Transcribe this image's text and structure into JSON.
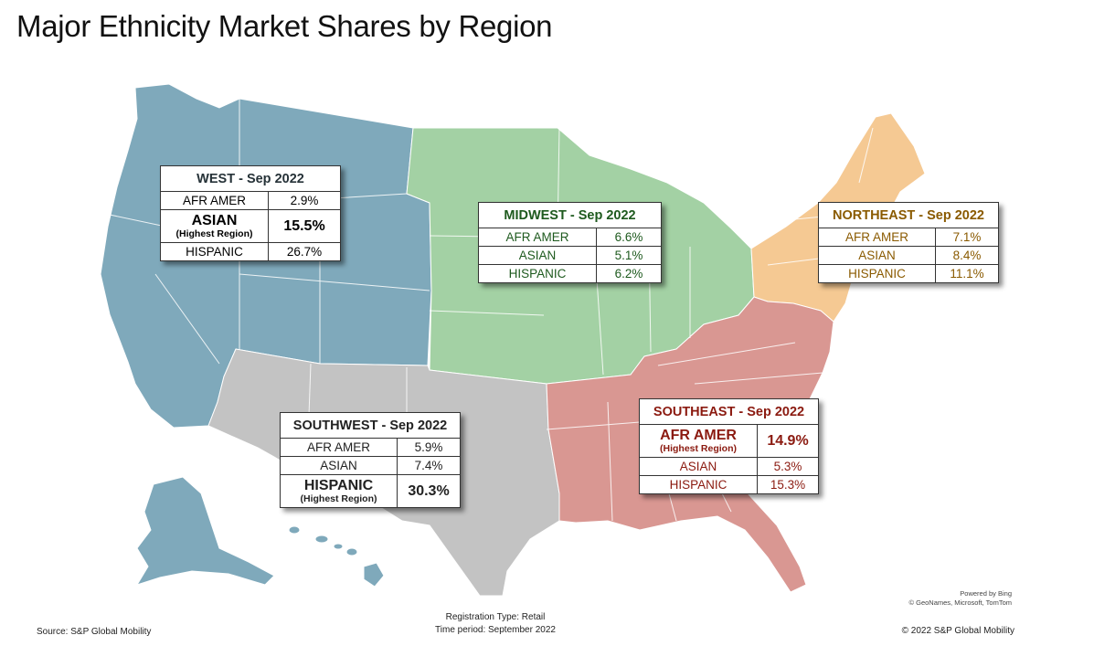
{
  "title": "Major Ethnicity Market Shares by Region",
  "colors": {
    "west": "#7fa9bb",
    "southwest": "#c3c3c3",
    "midwest": "#a3d1a4",
    "northeast": "#f5c993",
    "southeast": "#d99792"
  },
  "regions": {
    "west": {
      "header": "WEST - Sep 2022",
      "color": "#263238",
      "rows": [
        {
          "label": "AFR AMER",
          "value": "2.9%"
        },
        {
          "label": "ASIAN",
          "sub": "(Highest Region)",
          "value": "15.5%",
          "highlight": true
        },
        {
          "label": "HISPANIC",
          "value": "26.7%"
        }
      ]
    },
    "midwest": {
      "header": "MIDWEST - Sep 2022",
      "color": "#1e5a1e",
      "rows": [
        {
          "label": "AFR AMER",
          "value": "6.6%"
        },
        {
          "label": "ASIAN",
          "value": "5.1%"
        },
        {
          "label": "HISPANIC",
          "value": "6.2%"
        }
      ]
    },
    "northeast": {
      "header": "NORTHEAST - Sep 2022",
      "color": "#8a5a00",
      "rows": [
        {
          "label": "AFR AMER",
          "value": "7.1%"
        },
        {
          "label": "ASIAN",
          "value": "8.4%"
        },
        {
          "label": "HISPANIC",
          "value": "11.1%"
        }
      ]
    },
    "southwest": {
      "header": "SOUTHWEST - Sep 2022",
      "color": "#222222",
      "rows": [
        {
          "label": "AFR AMER",
          "value": "5.9%"
        },
        {
          "label": "ASIAN",
          "value": "7.4%"
        },
        {
          "label": "HISPANIC",
          "sub": "(Highest Region)",
          "value": "30.3%",
          "highlight": true
        }
      ]
    },
    "southeast": {
      "header": "SOUTHEAST - Sep 2022",
      "color": "#8b1a10",
      "rows": [
        {
          "label": "AFR AMER",
          "sub": "(Highest Region)",
          "value": "14.9%",
          "highlight": true
        },
        {
          "label": "ASIAN",
          "value": "5.3%"
        },
        {
          "label": "HISPANIC",
          "value": "15.3%"
        }
      ]
    }
  },
  "footer": {
    "source": "Source: S&P Global Mobility",
    "registration": "Registration Type: Retail",
    "period": "Time period: September 2022",
    "copyright": "© 2022 S&P Global Mobility",
    "powered": "Powered by Bing",
    "attribution": "© GeoNames, Microsoft, TomTom"
  }
}
